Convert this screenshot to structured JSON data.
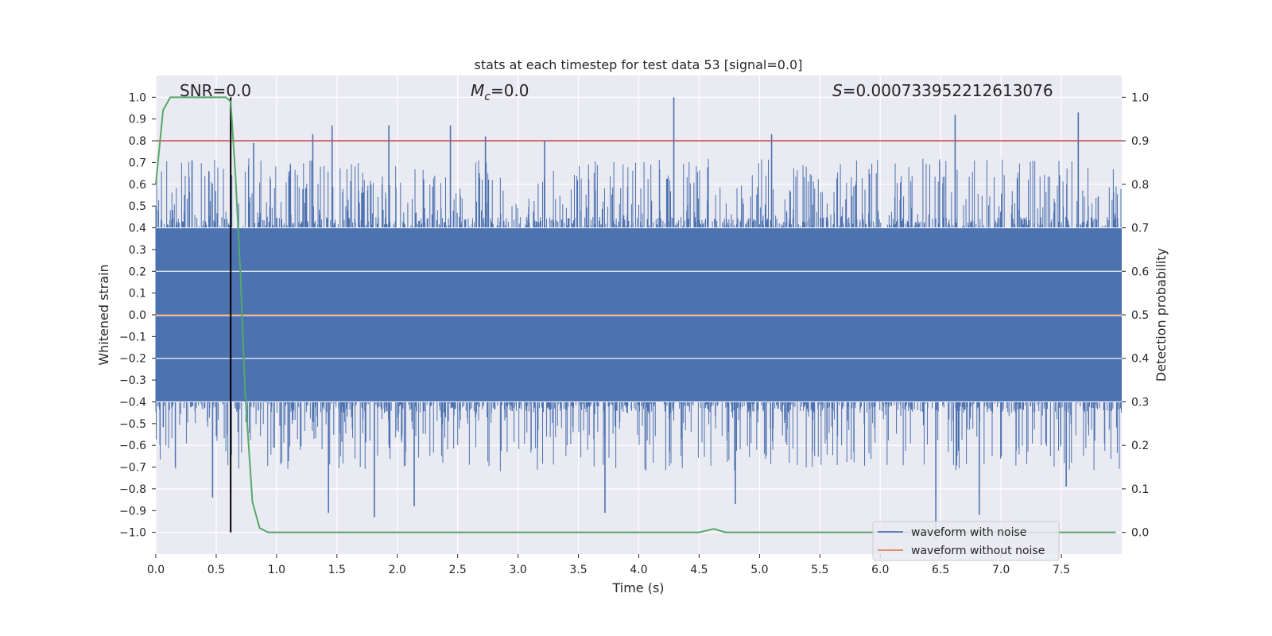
{
  "chart_data": {
    "type": "line",
    "title": "stats at each timestep for test data 53 [signal=0.0]",
    "xlabel": "Time (s)",
    "ylabel": "Whitened strain",
    "y2label": "Detection probability",
    "xlim": [
      0.0,
      8.0
    ],
    "ylim": [
      -1.1,
      1.1
    ],
    "y2lim": [
      -0.05,
      1.05
    ],
    "x_ticks": [
      "0.0",
      "0.5",
      "1.0",
      "1.5",
      "2.0",
      "2.5",
      "3.0",
      "3.5",
      "4.0",
      "4.5",
      "5.0",
      "5.5",
      "6.0",
      "6.5",
      "7.0",
      "7.5"
    ],
    "y_ticks": [
      "1.0",
      "0.9",
      "0.8",
      "0.7",
      "0.6",
      "0.5",
      "0.4",
      "0.3",
      "0.2",
      "0.1",
      "0.0",
      "−0.1",
      "−0.2",
      "−0.3",
      "−0.4",
      "−0.5",
      "−0.6",
      "−0.7",
      "−0.8",
      "−0.9",
      "−1.0"
    ],
    "y2_ticks": [
      "1.0",
      "0.9",
      "0.8",
      "0.7",
      "0.6",
      "0.5",
      "0.4",
      "0.3",
      "0.2",
      "0.1",
      "0.0"
    ],
    "grid": true,
    "legend_position": "lower-right",
    "annotations": {
      "snr_prefix": "SNR=",
      "snr_value": "0.0",
      "mc_symbol": "M",
      "mc_sub": "c",
      "mc_value": "=0.0",
      "s_symbol": "S",
      "s_value": "=0.000733952212613076"
    },
    "threshold_line": {
      "axis": "right",
      "value": 0.9,
      "color": "#c44e52"
    },
    "vertical_marker": {
      "x": 0.62,
      "y_from": -1.0,
      "y_to": 1.0,
      "color": "#000000"
    },
    "series": [
      {
        "name": "waveform with noise",
        "axis": "left",
        "color": "#4c72b0",
        "kind": "dense-noise",
        "x_range": [
          0.0,
          8.0
        ],
        "envelope_core": [
          -0.4,
          0.4
        ],
        "peaks_positive": [
          {
            "x": 0.3,
            "y": 0.71
          },
          {
            "x": 0.44,
            "y": 0.66
          },
          {
            "x": 0.81,
            "y": 0.79
          },
          {
            "x": 1.3,
            "y": 0.83
          },
          {
            "x": 1.46,
            "y": 0.87
          },
          {
            "x": 1.93,
            "y": 0.87
          },
          {
            "x": 2.44,
            "y": 0.87
          },
          {
            "x": 2.73,
            "y": 0.82
          },
          {
            "x": 3.22,
            "y": 0.8
          },
          {
            "x": 4.29,
            "y": 1.0
          },
          {
            "x": 5.1,
            "y": 0.83
          },
          {
            "x": 6.62,
            "y": 0.92
          },
          {
            "x": 7.64,
            "y": 0.93
          }
        ],
        "peaks_negative": [
          {
            "x": 0.47,
            "y": -0.84
          },
          {
            "x": 1.43,
            "y": -0.91
          },
          {
            "x": 1.81,
            "y": -0.93
          },
          {
            "x": 2.14,
            "y": -0.88
          },
          {
            "x": 3.72,
            "y": -0.91
          },
          {
            "x": 4.8,
            "y": -0.87
          },
          {
            "x": 6.46,
            "y": -1.03
          },
          {
            "x": 6.82,
            "y": -0.92
          },
          {
            "x": 7.54,
            "y": -0.79
          }
        ]
      },
      {
        "name": "waveform without noise",
        "axis": "left",
        "color": "#dd8452",
        "x": [
          0.0,
          8.0
        ],
        "y": [
          0.0,
          0.0
        ]
      },
      {
        "name": "detection probability",
        "axis": "right",
        "color": "#55a868",
        "x": [
          0.0,
          0.06,
          0.12,
          0.2,
          0.3,
          0.4,
          0.5,
          0.58,
          0.62,
          0.66,
          0.7,
          0.74,
          0.8,
          0.86,
          0.93,
          1.0,
          2.0,
          3.0,
          4.0,
          4.5,
          4.62,
          4.72,
          4.9,
          5.5,
          6.0,
          7.0,
          7.5,
          7.95
        ],
        "y": [
          0.8,
          0.97,
          1.0,
          1.0,
          1.0,
          1.0,
          1.0,
          1.0,
          0.99,
          0.82,
          0.6,
          0.32,
          0.07,
          0.01,
          0.0,
          0.0,
          0.0,
          0.0,
          0.0,
          0.0,
          0.008,
          0.0,
          0.0,
          0.0,
          0.0,
          0.0,
          0.0,
          0.0
        ]
      }
    ]
  }
}
